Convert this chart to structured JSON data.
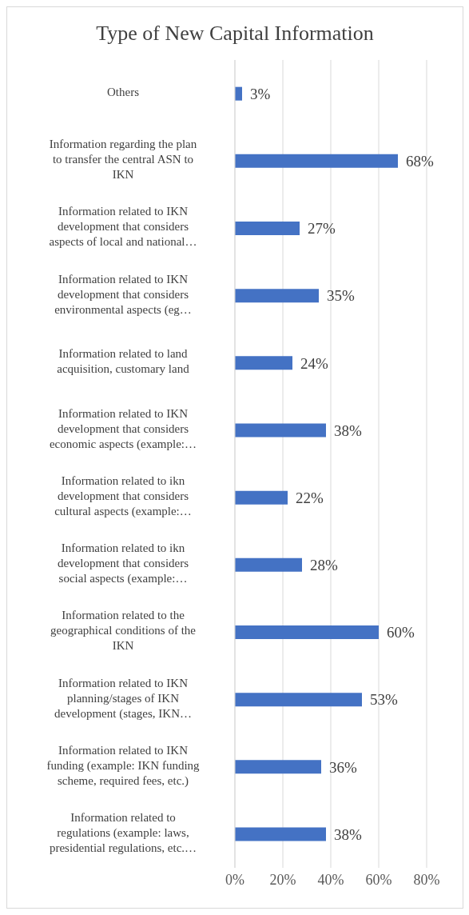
{
  "chart_data": {
    "type": "bar",
    "orientation": "horizontal",
    "title": "Type of New Capital Information",
    "categories": [
      "Others",
      "Information regarding the plan to transfer the central ASN to IKN",
      "Information related to IKN development that considers aspects of local and national…",
      "Information related to IKN development that considers environmental aspects (eg…",
      "Information related to land acquisition, customary land",
      "Information related to IKN development that considers economic aspects (example:…",
      "Information related to ikn development that considers cultural aspects (example:…",
      "Information related to ikn development that considers social aspects (example:…",
      "Information related to the geographical conditions of the IKN",
      "Information related to IKN planning/stages of IKN development (stages, IKN…",
      "Information related to IKN funding (example: IKN funding scheme, required fees, etc.)",
      "Information related to regulations (example: laws, presidential regulations, etc.…"
    ],
    "values": [
      3,
      68,
      27,
      35,
      24,
      38,
      22,
      28,
      60,
      53,
      36,
      38
    ],
    "value_labels": [
      "3%",
      "68%",
      "27%",
      "35%",
      "24%",
      "38%",
      "22%",
      "28%",
      "60%",
      "53%",
      "36%",
      "38%"
    ],
    "color": "#4472c4",
    "xlim": [
      0,
      80
    ],
    "xticks": [
      {
        "value": 0,
        "label": "0%"
      },
      {
        "value": 20,
        "label": "20%"
      },
      {
        "value": 40,
        "label": "40%"
      },
      {
        "value": 60,
        "label": "60%"
      },
      {
        "value": 80,
        "label": "80%"
      }
    ],
    "grid": "x"
  }
}
